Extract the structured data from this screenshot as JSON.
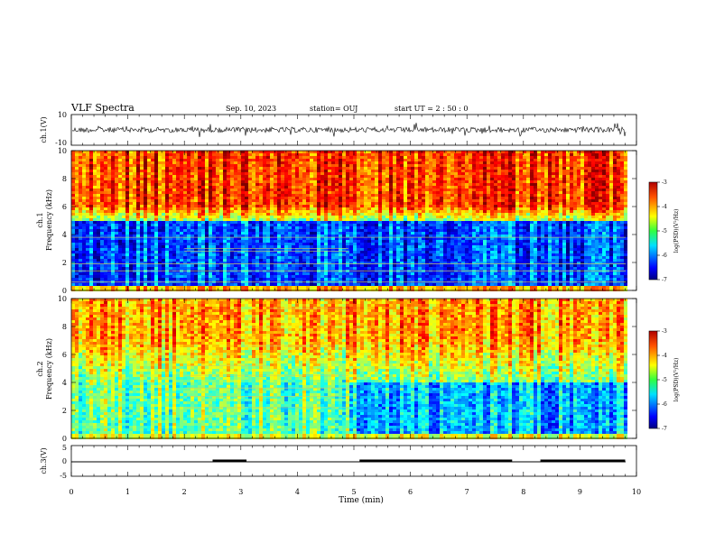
{
  "header": {
    "title": "VLF Spectra",
    "date": "Sep. 10, 2023",
    "station": "station= OUJ",
    "start": "start  UT =   2 : 50 : 0"
  },
  "chart_data": [
    {
      "type": "line",
      "panel": "ch1-waveform",
      "ylabel": "ch.1(V)",
      "ylim": [
        -10,
        10
      ],
      "yticks": [
        "10",
        "-10"
      ],
      "xlim": [
        0,
        10
      ],
      "signal": "dense noise waveform around 0 V, amplitude ~±2 V with spikes"
    },
    {
      "type": "heatmap",
      "panel": "ch1-spectrogram",
      "ylabel": "ch.1\nFrequency (kHz)",
      "ylabel_lines": [
        "ch.1",
        "Frequency  (kHz)"
      ],
      "ylim": [
        0,
        10
      ],
      "yticks": [
        "0",
        "2",
        "4",
        "6",
        "8",
        "10"
      ],
      "xlim": [
        0,
        10
      ],
      "colorbar": {
        "label": "log(PSD)(V²/Hz)",
        "range": [
          -7,
          -3
        ],
        "ticks": [
          "-3",
          "-4",
          "-5",
          "-6",
          "-7"
        ]
      }
    },
    {
      "type": "heatmap",
      "panel": "ch2-spectrogram",
      "ylabel_lines": [
        "ch.2",
        "Frequency  (kHz)"
      ],
      "ylim": [
        0,
        10
      ],
      "yticks": [
        "0",
        "2",
        "4",
        "6",
        "8",
        "10"
      ],
      "xlim": [
        0,
        10
      ],
      "colorbar": {
        "label": "log(PSD)(V²/Hz)",
        "range": [
          -7,
          -3
        ],
        "ticks": [
          "-3",
          "-4",
          "-5",
          "-6",
          "-7"
        ]
      }
    },
    {
      "type": "line",
      "panel": "ch3-signal",
      "ylabel": "ch.3(V)",
      "ylim": [
        -5,
        5
      ],
      "yticks": [
        "5",
        "0",
        "-5"
      ],
      "xlim": [
        0,
        10
      ],
      "xlabel": "Time  (min)",
      "xticks": [
        "0",
        "1",
        "2",
        "3",
        "4",
        "5",
        "6",
        "7",
        "8",
        "9",
        "10"
      ],
      "segments": [
        [
          2.5,
          3.1
        ],
        [
          5.1,
          7.8
        ],
        [
          8.3,
          9.8
        ]
      ]
    }
  ]
}
